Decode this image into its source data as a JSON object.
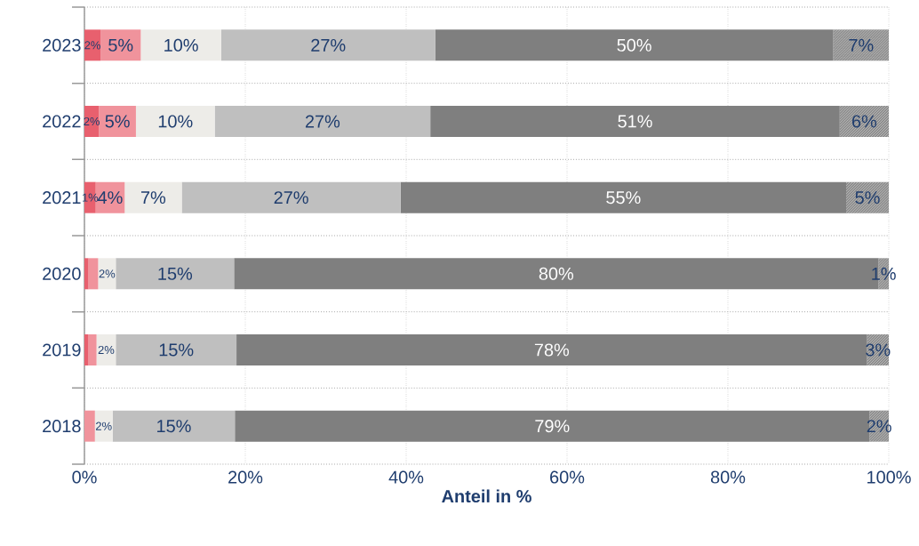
{
  "chart_data": {
    "type": "bar",
    "orientation": "horizontal",
    "stacked": true,
    "categories": [
      "2023",
      "2022",
      "2021",
      "2020",
      "2019",
      "2018"
    ],
    "xlabel": "Anteil in %",
    "xlim": [
      0,
      100
    ],
    "xticks": [
      {
        "value": 0,
        "label": "0%"
      },
      {
        "value": 20,
        "label": "20%"
      },
      {
        "value": 40,
        "label": "40%"
      },
      {
        "value": 60,
        "label": "60%"
      },
      {
        "value": 80,
        "label": "80%"
      },
      {
        "value": 100,
        "label": "100%"
      }
    ],
    "grid": true,
    "series": [
      {
        "color": "#e8606e",
        "values": [
          2.0,
          1.8,
          1.4,
          0.5,
          0.5,
          null
        ],
        "value_labels": [
          "2%",
          "2%",
          "1%",
          null,
          null,
          null
        ]
      },
      {
        "color": "#f0939c",
        "values": [
          5.0,
          4.6,
          3.6,
          1.2,
          1.0,
          1.3
        ],
        "value_labels": [
          "5%",
          "5%",
          "4%",
          null,
          null,
          null
        ]
      },
      {
        "color": "#edece8",
        "values": [
          10.0,
          9.8,
          7.1,
          2.2,
          2.4,
          2.2
        ],
        "value_labels": [
          "10%",
          "10%",
          "7%",
          "2%",
          "2%",
          "2%"
        ]
      },
      {
        "color": "#bfbfbf",
        "values": [
          26.6,
          26.8,
          27.2,
          14.7,
          15.0,
          15.2
        ],
        "value_labels": [
          "27%",
          "27%",
          "27%",
          "15%",
          "15%",
          "15%"
        ]
      },
      {
        "color": "#7f7f7f",
        "values": [
          49.5,
          50.9,
          55.4,
          80.1,
          78.4,
          78.9
        ],
        "value_labels": [
          "50%",
          "51%",
          "55%",
          "80%",
          "78%",
          "79%"
        ]
      },
      {
        "color": "#8c8c8c",
        "values": [
          6.9,
          6.1,
          5.3,
          1.3,
          2.7,
          2.4
        ],
        "value_labels": [
          "7%",
          "6%",
          "5%",
          "1%",
          "3%",
          "2%"
        ]
      }
    ]
  }
}
